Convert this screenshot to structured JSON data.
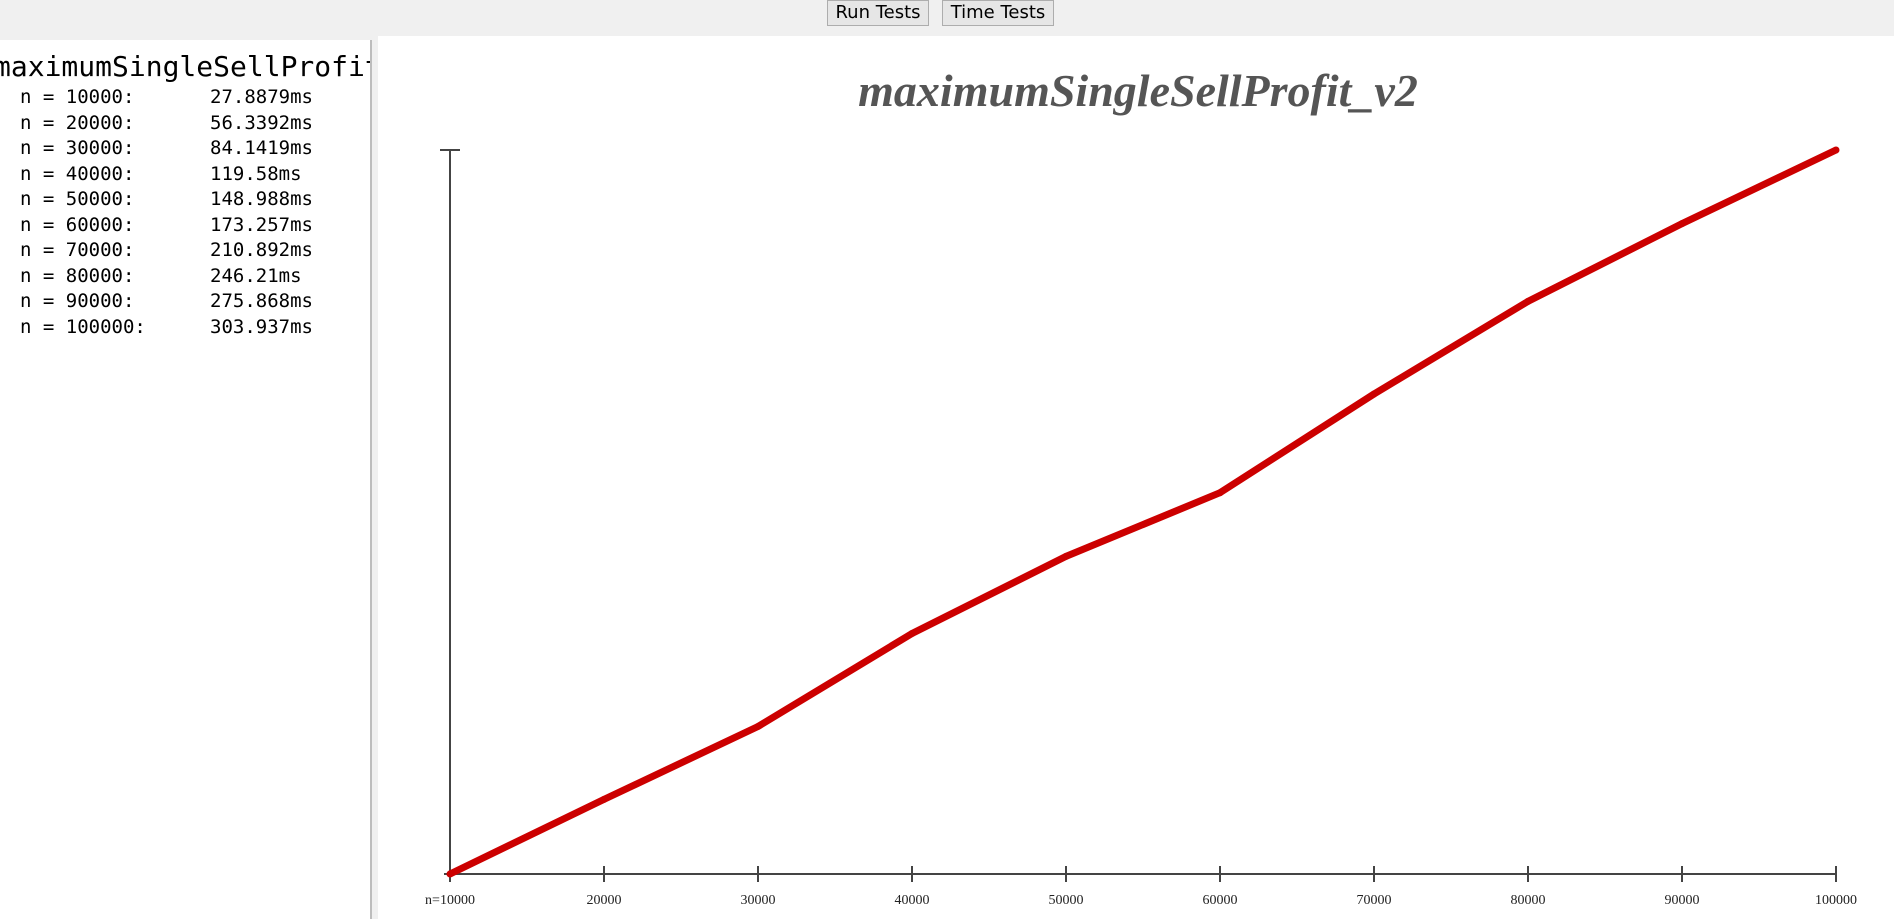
{
  "toolbar": {
    "run_label": "Run Tests",
    "time_label": "Time Tests"
  },
  "results": {
    "title": "maximumSingleSellProfit_v2",
    "rows": [
      {
        "n": "n = 10000:",
        "time": "27.8879ms"
      },
      {
        "n": "n = 20000:",
        "time": "56.3392ms"
      },
      {
        "n": "n = 30000:",
        "time": "84.1419ms"
      },
      {
        "n": "n = 40000:",
        "time": "119.58ms"
      },
      {
        "n": "n = 50000:",
        "time": "148.988ms"
      },
      {
        "n": "n = 60000:",
        "time": "173.257ms"
      },
      {
        "n": "n = 70000:",
        "time": "210.892ms"
      },
      {
        "n": "n = 80000:",
        "time": "246.21ms"
      },
      {
        "n": "n = 90000:",
        "time": "275.868ms"
      },
      {
        "n": "n = 100000:",
        "time": "303.937ms"
      }
    ]
  },
  "colors": {
    "line": "#cc0000",
    "axis": "#444444",
    "title": "#555555"
  },
  "chart_data": {
    "type": "line",
    "title": "maximumSingleSellProfit_v2",
    "x": [
      10000,
      20000,
      30000,
      40000,
      50000,
      60000,
      70000,
      80000,
      90000,
      100000
    ],
    "x_tick_labels": [
      "n=10000",
      "20000",
      "30000",
      "40000",
      "50000",
      "60000",
      "70000",
      "80000",
      "90000",
      "100000"
    ],
    "series": [
      {
        "values": [
          27.8879,
          56.3392,
          84.1419,
          119.58,
          148.988,
          173.257,
          210.892,
          246.21,
          275.868,
          303.937
        ]
      }
    ],
    "xlim": [
      10000,
      100000
    ],
    "ylim": [
      27.8879,
      303.937
    ],
    "grid": false,
    "legend": "none"
  }
}
